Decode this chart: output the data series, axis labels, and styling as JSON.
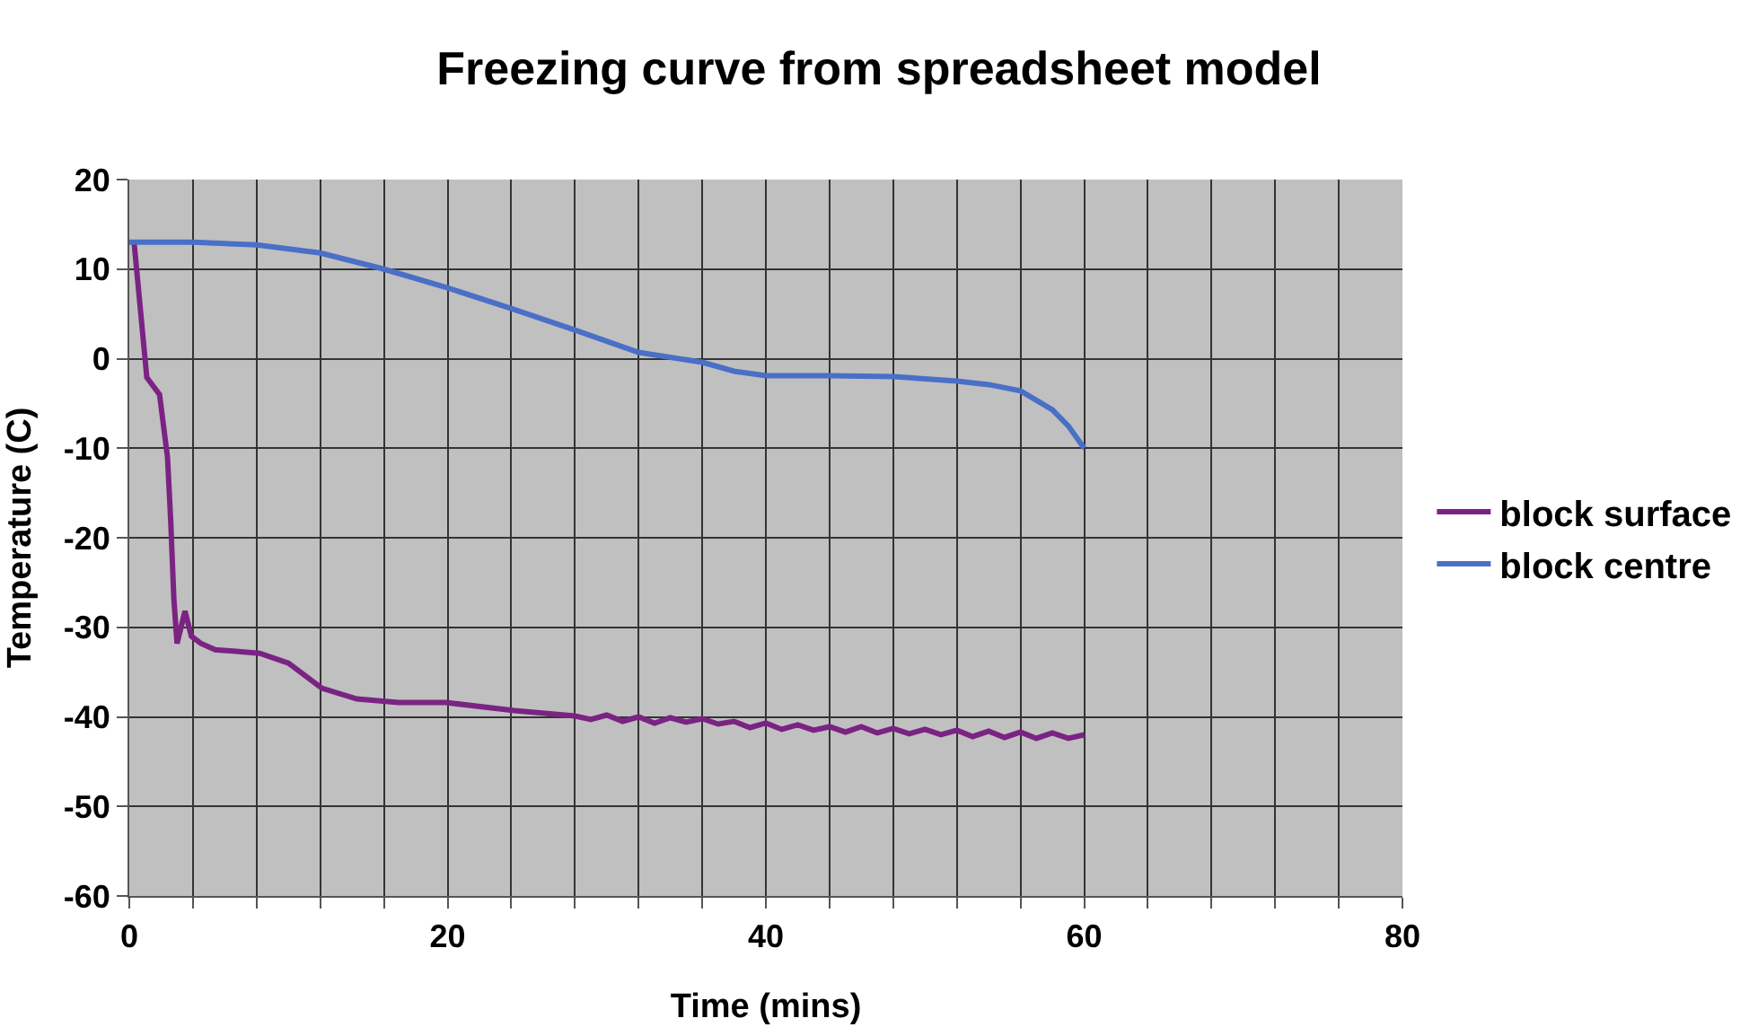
{
  "chart_data": {
    "type": "line",
    "title": "Freezing curve from spreadsheet model",
    "xlabel": "Time (mins)",
    "ylabel": "Temperature (C)",
    "xlim": [
      0,
      80
    ],
    "xticks": [
      0,
      {
        "value": 4,
        "label": null
      },
      {
        "value": 8,
        "label": null
      },
      {
        "value": 12,
        "label": null
      },
      {
        "value": 16,
        "label": null
      },
      20,
      {
        "value": 24,
        "label": null
      },
      {
        "value": 28,
        "label": null
      },
      {
        "value": 32,
        "label": null
      },
      {
        "value": 36,
        "label": null
      },
      40,
      {
        "value": 44,
        "label": null
      },
      {
        "value": 48,
        "label": null
      },
      {
        "value": 52,
        "label": null
      },
      {
        "value": 56,
        "label": null
      },
      60,
      {
        "value": 64,
        "label": null
      },
      {
        "value": 68,
        "label": null
      },
      {
        "value": 72,
        "label": null
      },
      {
        "value": 76,
        "label": null
      },
      80
    ],
    "ylim": [
      -60,
      20
    ],
    "yticks": [
      -60,
      -50,
      -40,
      -30,
      -20,
      -10,
      0,
      10,
      20
    ],
    "grid": true,
    "legend": "right",
    "marker": "none",
    "line_style": "solid",
    "series": [
      {
        "name": "block surface",
        "color": "#7b2383",
        "x": [
          0.3,
          1.1,
          1.9,
          2.4,
          2.6,
          2.8,
          3.0,
          3.5,
          3.9,
          4.5,
          5.4,
          8.2,
          10,
          12.1,
          14.3,
          16.9,
          19.9,
          24.2,
          28,
          29,
          30,
          31,
          32,
          33,
          34,
          35,
          36,
          37,
          38,
          39,
          40,
          41,
          42,
          43,
          44,
          45,
          46,
          47,
          48,
          49,
          50,
          51,
          52,
          53,
          54,
          55,
          56,
          57,
          58,
          59,
          60
        ],
        "values": [
          13,
          -2.1,
          -4,
          -11,
          -18,
          -26.8,
          -31.8,
          -28.2,
          -31,
          -31.8,
          -32.5,
          -32.9,
          -34,
          -36.8,
          -38,
          -38.4,
          -38.4,
          -39.3,
          -39.9,
          -40.3,
          -39.8,
          -40.5,
          -40.0,
          -40.7,
          -40.1,
          -40.6,
          -40.2,
          -40.8,
          -40.5,
          -41.2,
          -40.7,
          -41.4,
          -40.9,
          -41.5,
          -41.1,
          -41.7,
          -41.1,
          -41.8,
          -41.3,
          -41.9,
          -41.4,
          -42.0,
          -41.5,
          -42.2,
          -41.6,
          -42.3,
          -41.7,
          -42.4,
          -41.8,
          -42.4,
          -42.0
        ]
      },
      {
        "name": "block centre",
        "color": "#4a6fc7",
        "x": [
          0,
          4,
          8,
          12,
          16,
          20,
          24,
          28,
          32,
          36,
          38,
          40,
          44,
          48,
          52,
          54,
          56,
          58,
          59,
          60
        ],
        "values": [
          13,
          13,
          12.7,
          11.8,
          10,
          7.9,
          5.6,
          3.2,
          0.7,
          -0.4,
          -1.4,
          -1.9,
          -1.9,
          -2,
          -2.5,
          -2.9,
          -3.6,
          -5.7,
          -7.5,
          -10
        ]
      }
    ]
  }
}
